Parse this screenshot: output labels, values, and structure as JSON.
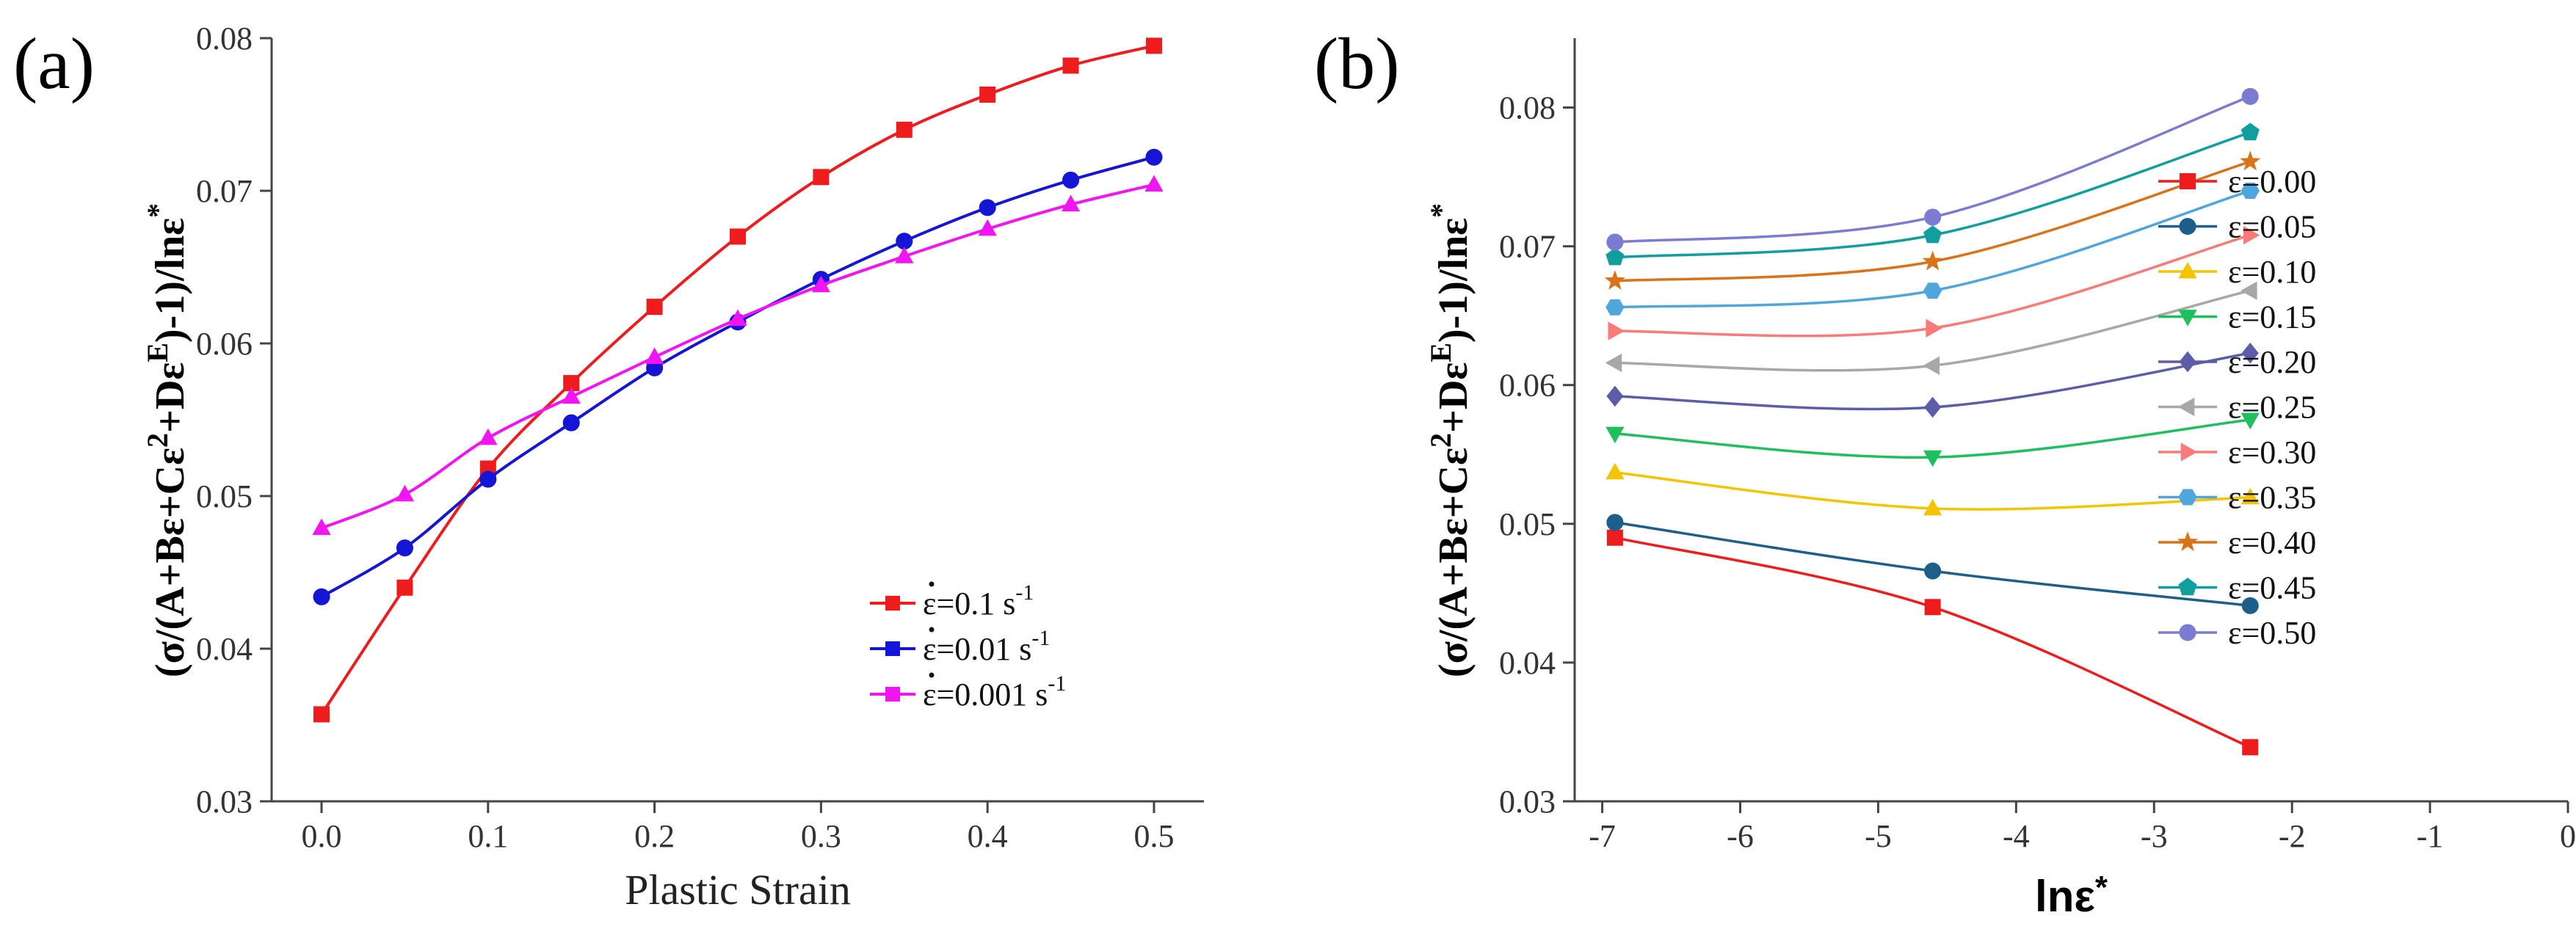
{
  "chart_data": [
    {
      "panel": "(a)",
      "type": "line",
      "xlabel": "Plastic Strain",
      "ylabel": "(σ/(A+Bε+Cε²+Dε^E)-1)/lnε̇*",
      "ylabel_parts": {
        "p1": "(σ/(A+Bε+Cε",
        "sup1": "2",
        "p2": "+Dε",
        "sup2": "E",
        "p3": ")-1)/lnε",
        "p4": "*"
      },
      "xlim": [
        -0.03,
        0.53
      ],
      "ylim": [
        0.03,
        0.08
      ],
      "xticks": [
        0.0,
        0.1,
        0.2,
        0.3,
        0.4,
        0.5
      ],
      "xtick_labels": [
        "0.0",
        "0.1",
        "0.2",
        "0.3",
        "0.4",
        "0.5"
      ],
      "yticks": [
        0.03,
        0.04,
        0.05,
        0.06,
        0.07,
        0.08
      ],
      "ytick_labels": [
        "0.03",
        "0.04",
        "0.05",
        "0.06",
        "0.07",
        "0.08"
      ],
      "legend_position": "lower-right",
      "x": [
        0.0,
        0.05,
        0.1,
        0.15,
        0.2,
        0.25,
        0.3,
        0.35,
        0.4,
        0.45,
        0.5
      ],
      "series": [
        {
          "name": "ε=0.1 s⁻¹",
          "label_base": "ε=0.1 s",
          "label_sup": "-1",
          "color": "#ee1c1c",
          "marker": "square",
          "values": [
            0.0357,
            0.044,
            0.0518,
            0.0574,
            0.0624,
            0.067,
            0.0709,
            0.074,
            0.0763,
            0.0782,
            0.0795
          ]
        },
        {
          "name": "ε=0.01 s⁻¹",
          "label_base": "ε=0.01 s",
          "label_sup": "-1",
          "color": "#1515d5",
          "marker": "circle",
          "values": [
            0.0434,
            0.0466,
            0.0511,
            0.0548,
            0.0584,
            0.0614,
            0.0642,
            0.0667,
            0.0689,
            0.0707,
            0.0722
          ]
        },
        {
          "name": "ε=0.001 s⁻¹",
          "label_base": "ε=0.001 s",
          "label_sup": "-1",
          "color": "#f215f2",
          "marker": "triangle",
          "values": [
            0.0479,
            0.0501,
            0.0538,
            0.0565,
            0.0591,
            0.0616,
            0.0638,
            0.0657,
            0.0675,
            0.0691,
            0.0704
          ]
        }
      ]
    },
    {
      "panel": "(b)",
      "type": "line",
      "xlabel": "lnε̇*",
      "xlabel_parts": {
        "base": "lnε",
        "star": "*"
      },
      "ylabel": "(σ/(A+Bε+Cε²+Dε^E)-1)/lnε̇*",
      "ylabel_parts": {
        "p1": "(σ/(A+Bε+Cε",
        "sup1": "2",
        "p2": "+Dε",
        "sup2": "E",
        "p3": ")-1)/lnε",
        "p4": "*"
      },
      "xlim": [
        -7.2,
        0
      ],
      "ylim": [
        0.03,
        0.085
      ],
      "xticks": [
        -7,
        -6,
        -5,
        -4,
        -3,
        -2,
        -1,
        0
      ],
      "xtick_labels": [
        "-7",
        "-6",
        "-5",
        "-4",
        "-3",
        "-2",
        "-1",
        "0"
      ],
      "yticks": [
        0.03,
        0.04,
        0.05,
        0.06,
        0.07,
        0.08
      ],
      "ytick_labels": [
        "0.03",
        "0.04",
        "0.05",
        "0.06",
        "0.07",
        "0.08"
      ],
      "legend_position": "right",
      "x": [
        -6.908,
        -4.605,
        -2.303
      ],
      "series": [
        {
          "name": "ε=0.00",
          "color": "#ee1c1c",
          "marker": "square",
          "values": [
            0.049,
            0.044,
            0.0339
          ]
        },
        {
          "name": "ε=0.05",
          "color": "#1d5f8a",
          "marker": "circle",
          "values": [
            0.0501,
            0.0466,
            0.0441
          ]
        },
        {
          "name": "ε=0.10",
          "color": "#f5c400",
          "marker": "triangle",
          "values": [
            0.0537,
            0.0511,
            0.0519
          ]
        },
        {
          "name": "ε=0.15",
          "color": "#1fbf5f",
          "marker": "triangle-down",
          "values": [
            0.0565,
            0.0548,
            0.0575
          ]
        },
        {
          "name": "ε=0.20",
          "color": "#5c5ca8",
          "marker": "diamond",
          "values": [
            0.0592,
            0.0584,
            0.0623
          ]
        },
        {
          "name": "ε=0.25",
          "color": "#a8a8a8",
          "marker": "triangle-left",
          "values": [
            0.0616,
            0.0614,
            0.0668
          ]
        },
        {
          "name": "ε=0.30",
          "color": "#fa7a7a",
          "marker": "triangle-right",
          "values": [
            0.0639,
            0.0641,
            0.0708
          ]
        },
        {
          "name": "ε=0.35",
          "color": "#4ea6dc",
          "marker": "hexagon",
          "values": [
            0.0656,
            0.0668,
            0.074
          ]
        },
        {
          "name": "ε=0.40",
          "color": "#d8731a",
          "marker": "star",
          "values": [
            0.0675,
            0.0689,
            0.0761
          ]
        },
        {
          "name": "ε=0.45",
          "color": "#119e9e",
          "marker": "pentagon",
          "values": [
            0.0692,
            0.0708,
            0.0782
          ]
        },
        {
          "name": "ε=0.50",
          "color": "#7b7bd1",
          "marker": "circle",
          "values": [
            0.0703,
            0.0721,
            0.0808
          ]
        }
      ]
    }
  ]
}
